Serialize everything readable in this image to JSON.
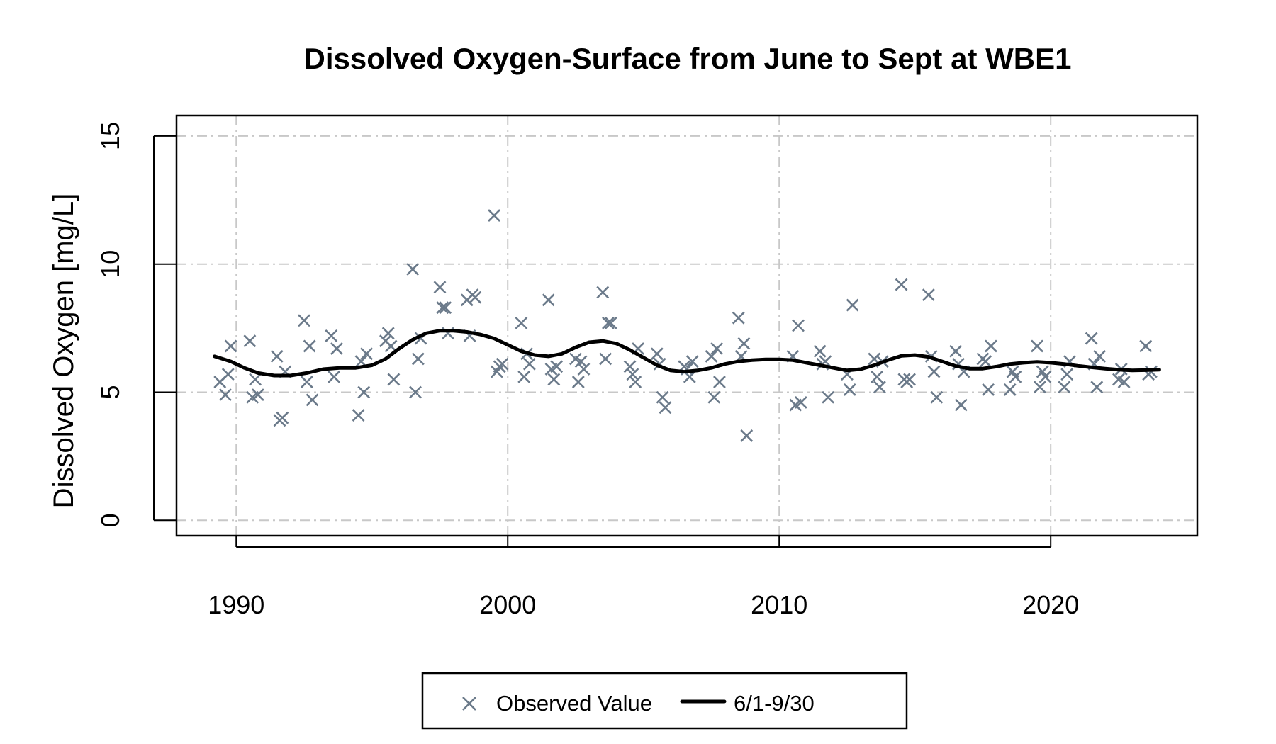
{
  "chart_data": {
    "type": "scatter",
    "title": "Dissolved Oxygen-Surface from June to Sept at WBE1",
    "xlabel": "",
    "ylabel": "Dissolved Oxygen [mg/L]",
    "xlim": [
      1987.8,
      2025.4
    ],
    "ylim": [
      -0.6,
      15.8
    ],
    "x_ticks": [
      1990,
      2000,
      2010,
      2020
    ],
    "y_ticks": [
      0,
      5,
      10,
      15
    ],
    "grid": true,
    "legend_position": "bottom",
    "colors": {
      "observed": "#6b7a8a",
      "trend": "#000000",
      "grid": "#c8c8c8"
    },
    "series": [
      {
        "name": "Observed Value",
        "marker": "x",
        "points": [
          [
            1989.4,
            5.4
          ],
          [
            1989.6,
            4.9
          ],
          [
            1989.7,
            5.7
          ],
          [
            1989.8,
            6.8
          ],
          [
            1990.5,
            7.0
          ],
          [
            1990.6,
            4.8
          ],
          [
            1990.7,
            5.5
          ],
          [
            1990.8,
            4.9
          ],
          [
            1991.5,
            6.4
          ],
          [
            1991.6,
            3.9
          ],
          [
            1991.7,
            4.0
          ],
          [
            1991.8,
            5.8
          ],
          [
            1992.5,
            7.8
          ],
          [
            1992.6,
            5.4
          ],
          [
            1992.7,
            6.8
          ],
          [
            1992.8,
            4.7
          ],
          [
            1993.5,
            7.2
          ],
          [
            1993.6,
            5.6
          ],
          [
            1993.7,
            6.7
          ],
          [
            1994.5,
            4.1
          ],
          [
            1994.6,
            6.2
          ],
          [
            1994.7,
            5.0
          ],
          [
            1994.8,
            6.5
          ],
          [
            1995.5,
            7.0
          ],
          [
            1995.6,
            7.3
          ],
          [
            1995.7,
            6.8
          ],
          [
            1995.8,
            5.5
          ],
          [
            1996.5,
            9.8
          ],
          [
            1996.6,
            5.0
          ],
          [
            1996.7,
            6.3
          ],
          [
            1996.8,
            7.1
          ],
          [
            1997.5,
            9.1
          ],
          [
            1997.6,
            8.3
          ],
          [
            1997.7,
            8.3
          ],
          [
            1997.8,
            7.3
          ],
          [
            1998.5,
            8.6
          ],
          [
            1998.6,
            7.2
          ],
          [
            1998.7,
            8.8
          ],
          [
            1998.8,
            8.7
          ],
          [
            1999.5,
            11.9
          ],
          [
            1999.6,
            5.8
          ],
          [
            1999.7,
            6.0
          ],
          [
            1999.8,
            6.1
          ],
          [
            2000.5,
            7.7
          ],
          [
            2000.6,
            5.6
          ],
          [
            2000.7,
            6.5
          ],
          [
            2000.8,
            6.1
          ],
          [
            2001.5,
            8.6
          ],
          [
            2001.6,
            5.9
          ],
          [
            2001.7,
            5.5
          ],
          [
            2001.8,
            6.0
          ],
          [
            2002.5,
            6.3
          ],
          [
            2002.6,
            5.4
          ],
          [
            2002.7,
            6.2
          ],
          [
            2002.8,
            5.9
          ],
          [
            2003.5,
            8.9
          ],
          [
            2003.6,
            6.3
          ],
          [
            2003.7,
            7.7
          ],
          [
            2003.8,
            7.7
          ],
          [
            2004.5,
            6.0
          ],
          [
            2004.6,
            5.7
          ],
          [
            2004.7,
            5.4
          ],
          [
            2004.8,
            6.7
          ],
          [
            2005.5,
            6.5
          ],
          [
            2005.6,
            6.1
          ],
          [
            2005.7,
            4.8
          ],
          [
            2005.8,
            4.4
          ],
          [
            2006.5,
            6.0
          ],
          [
            2006.6,
            5.9
          ],
          [
            2006.7,
            5.6
          ],
          [
            2006.8,
            6.2
          ],
          [
            2007.5,
            6.4
          ],
          [
            2007.6,
            4.8
          ],
          [
            2007.7,
            6.7
          ],
          [
            2007.8,
            5.4
          ],
          [
            2008.5,
            7.9
          ],
          [
            2008.6,
            6.4
          ],
          [
            2008.7,
            6.9
          ],
          [
            2008.8,
            3.3
          ],
          [
            2010.5,
            6.4
          ],
          [
            2010.6,
            4.5
          ],
          [
            2010.7,
            7.6
          ],
          [
            2010.8,
            4.6
          ],
          [
            2011.5,
            6.6
          ],
          [
            2011.6,
            6.1
          ],
          [
            2011.7,
            6.2
          ],
          [
            2011.8,
            4.8
          ],
          [
            2012.5,
            5.7
          ],
          [
            2012.6,
            5.1
          ],
          [
            2012.7,
            8.4
          ],
          [
            2013.5,
            6.3
          ],
          [
            2013.6,
            5.6
          ],
          [
            2013.7,
            5.2
          ],
          [
            2013.8,
            6.2
          ],
          [
            2014.5,
            9.2
          ],
          [
            2014.6,
            5.5
          ],
          [
            2014.7,
            5.4
          ],
          [
            2014.8,
            5.5
          ],
          [
            2015.5,
            8.8
          ],
          [
            2015.6,
            6.4
          ],
          [
            2015.7,
            5.8
          ],
          [
            2015.8,
            4.8
          ],
          [
            2016.5,
            6.6
          ],
          [
            2016.6,
            6.1
          ],
          [
            2016.7,
            4.5
          ],
          [
            2016.8,
            5.8
          ],
          [
            2017.5,
            6.3
          ],
          [
            2017.6,
            6.2
          ],
          [
            2017.7,
            5.1
          ],
          [
            2017.8,
            6.8
          ],
          [
            2018.5,
            5.1
          ],
          [
            2018.6,
            5.8
          ],
          [
            2018.7,
            5.6
          ],
          [
            2019.5,
            6.8
          ],
          [
            2019.6,
            5.2
          ],
          [
            2019.7,
            5.8
          ],
          [
            2019.8,
            5.6
          ],
          [
            2020.5,
            5.2
          ],
          [
            2020.6,
            5.7
          ],
          [
            2020.7,
            6.2
          ],
          [
            2021.5,
            7.1
          ],
          [
            2021.6,
            6.1
          ],
          [
            2021.7,
            5.2
          ],
          [
            2021.8,
            6.4
          ],
          [
            2022.5,
            5.5
          ],
          [
            2022.6,
            5.9
          ],
          [
            2022.7,
            5.4
          ],
          [
            2023.5,
            6.8
          ],
          [
            2023.6,
            5.7
          ],
          [
            2023.7,
            5.8
          ]
        ]
      },
      {
        "name": "6/1-9/30",
        "line": true,
        "points": [
          [
            1989.2,
            6.4
          ],
          [
            1989.8,
            6.2
          ],
          [
            1990.3,
            5.95
          ],
          [
            1990.8,
            5.75
          ],
          [
            1991.4,
            5.65
          ],
          [
            1992.0,
            5.65
          ],
          [
            1992.6,
            5.75
          ],
          [
            1993.2,
            5.9
          ],
          [
            1993.8,
            5.95
          ],
          [
            1994.4,
            5.95
          ],
          [
            1995.0,
            6.05
          ],
          [
            1995.5,
            6.3
          ],
          [
            1996.0,
            6.7
          ],
          [
            1996.5,
            7.05
          ],
          [
            1997.0,
            7.3
          ],
          [
            1997.5,
            7.4
          ],
          [
            1998.0,
            7.4
          ],
          [
            1998.5,
            7.35
          ],
          [
            1999.0,
            7.25
          ],
          [
            1999.5,
            7.1
          ],
          [
            2000.0,
            6.85
          ],
          [
            2000.5,
            6.6
          ],
          [
            2001.0,
            6.45
          ],
          [
            2001.5,
            6.4
          ],
          [
            2002.0,
            6.5
          ],
          [
            2002.5,
            6.75
          ],
          [
            2003.0,
            6.95
          ],
          [
            2003.5,
            7.0
          ],
          [
            2004.0,
            6.9
          ],
          [
            2004.5,
            6.65
          ],
          [
            2005.0,
            6.35
          ],
          [
            2005.5,
            6.05
          ],
          [
            2006.0,
            5.85
          ],
          [
            2006.5,
            5.8
          ],
          [
            2007.0,
            5.85
          ],
          [
            2007.5,
            5.95
          ],
          [
            2008.0,
            6.1
          ],
          [
            2008.5,
            6.2
          ],
          [
            2009.0,
            6.25
          ],
          [
            2009.5,
            6.28
          ],
          [
            2010.0,
            6.28
          ],
          [
            2010.5,
            6.25
          ],
          [
            2011.0,
            6.15
          ],
          [
            2011.5,
            6.05
          ],
          [
            2012.0,
            5.95
          ],
          [
            2012.5,
            5.85
          ],
          [
            2013.0,
            5.9
          ],
          [
            2013.5,
            6.05
          ],
          [
            2014.0,
            6.25
          ],
          [
            2014.5,
            6.42
          ],
          [
            2015.0,
            6.45
          ],
          [
            2015.5,
            6.38
          ],
          [
            2016.0,
            6.2
          ],
          [
            2016.5,
            6.02
          ],
          [
            2017.0,
            5.92
          ],
          [
            2017.5,
            5.92
          ],
          [
            2018.0,
            6.0
          ],
          [
            2018.5,
            6.1
          ],
          [
            2019.0,
            6.15
          ],
          [
            2019.5,
            6.18
          ],
          [
            2020.0,
            6.15
          ],
          [
            2020.5,
            6.1
          ],
          [
            2021.0,
            6.03
          ],
          [
            2021.5,
            5.97
          ],
          [
            2022.0,
            5.92
          ],
          [
            2022.5,
            5.88
          ],
          [
            2023.0,
            5.85
          ],
          [
            2023.5,
            5.86
          ],
          [
            2024.0,
            5.88
          ]
        ]
      }
    ]
  }
}
